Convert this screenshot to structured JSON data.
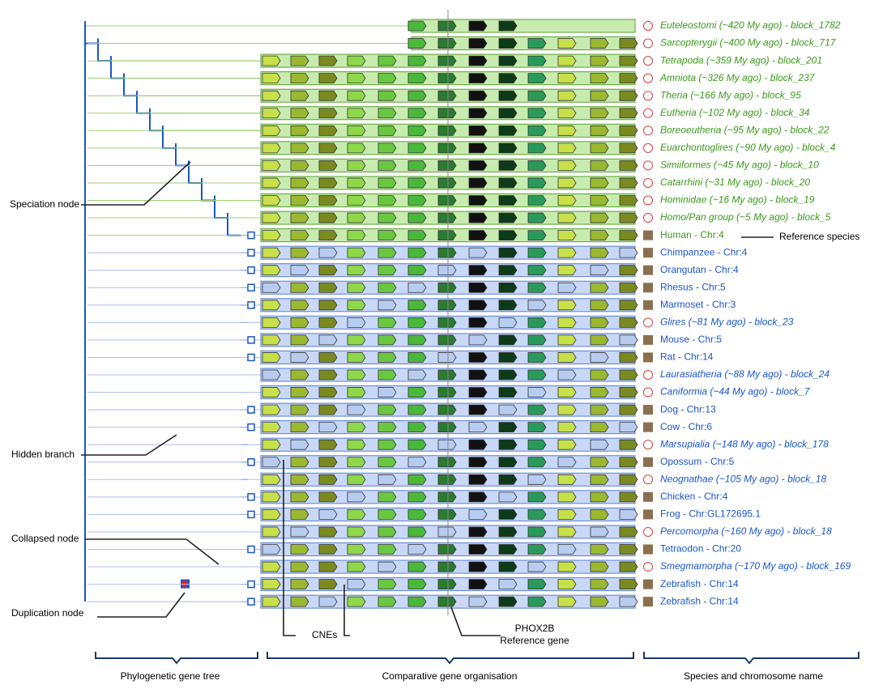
{
  "rows": [
    {
      "label": "Euteleostomi (~420 My ago) - block_1782",
      "color": "#3a9a1a"
    },
    {
      "label": "Sarcopterygii (~400 My ago) - block_717",
      "color": "#3a9a1a"
    },
    {
      "label": "Tetrapoda (~359 My ago) - block_201",
      "color": "#3a9a1a"
    },
    {
      "label": "Amniota (~326 My ago) - block_237",
      "color": "#3a9a1a"
    },
    {
      "label": "Theria (~166 My ago) - block_95",
      "color": "#3a9a1a"
    },
    {
      "label": "Eutheria (~102 My ago) - block_34",
      "color": "#3a9a1a"
    },
    {
      "label": "Boreoeutheria (~95 My ago) - block_22",
      "color": "#3a9a1a"
    },
    {
      "label": "Euarchontoglires (~90 My ago) - block_4",
      "color": "#3a9a1a"
    },
    {
      "label": "Simiiformes (~45 My ago) - block_10",
      "color": "#3a9a1a"
    },
    {
      "label": "Catarrhini (~31 My ago) - block_20",
      "color": "#3a9a1a"
    },
    {
      "label": "Hominidae (~16 My ago) - block_19",
      "color": "#3a9a1a"
    },
    {
      "label": "Homo/Pan group (~5 My ago) - block_5",
      "color": "#3a9a1a"
    },
    {
      "label": "Human - Chr:4",
      "color": "#3a9a1a"
    },
    {
      "label": "Chimpanzee - Chr:4",
      "color": "#1a56c8"
    },
    {
      "label": "Orangutan - Chr:4",
      "color": "#1a56c8"
    },
    {
      "label": "Rhesus - Chr:5",
      "color": "#1a56c8"
    },
    {
      "label": "Marmoset - Chr:3",
      "color": "#1a56c8"
    },
    {
      "label": "Glires (~81 My ago) - block_23",
      "color": "#1a56c8"
    },
    {
      "label": "Mouse - Chr:5",
      "color": "#1a56c8"
    },
    {
      "label": "Rat - Chr:14",
      "color": "#1a56c8"
    },
    {
      "label": "Laurasiatheria (~88 My ago) - block_24",
      "color": "#1a56c8"
    },
    {
      "label": "Caniformia (~44 My ago) - block_7",
      "color": "#1a56c8"
    },
    {
      "label": "Dog - Chr:13",
      "color": "#1a56c8"
    },
    {
      "label": "Cow - Chr:6",
      "color": "#1a56c8"
    },
    {
      "label": "Marsupialia (~148 My ago) - block_178",
      "color": "#1a56c8"
    },
    {
      "label": "Opossum - Chr:5",
      "color": "#1a56c8"
    },
    {
      "label": "Neognathae (~105 My ago) - block_18",
      "color": "#1a56c8"
    },
    {
      "label": "Chicken - Chr:4",
      "color": "#1a56c8"
    },
    {
      "label": "Frog - Chr:GL172695.1",
      "color": "#1a56c8"
    },
    {
      "label": "Percomorpha (~160 My ago) - block_18",
      "color": "#1a56c8"
    },
    {
      "label": "Tetraodon - Chr:20",
      "color": "#1a56c8"
    },
    {
      "label": "Smegmamorpha (~170 My ago) - block_169",
      "color": "#1a56c8"
    },
    {
      "label": "Zebrafish - Chr:14",
      "color": "#1a56c8"
    },
    {
      "label": "Zebrafish - Chr:14",
      "color": "#1a56c8"
    }
  ],
  "annotations": {
    "speciation": "Speciation node",
    "hidden": "Hidden branch",
    "collapsed": "Collapsed node",
    "duplication": "Duplication node",
    "cnes": "CNEs",
    "gene": "PHOX2B",
    "gene_sub": "Reference gene",
    "reference_species": "Reference species"
  },
  "sections": [
    "Phylogenetic gene tree",
    "Comparative gene organisation",
    "Species and chromosome name"
  ]
}
